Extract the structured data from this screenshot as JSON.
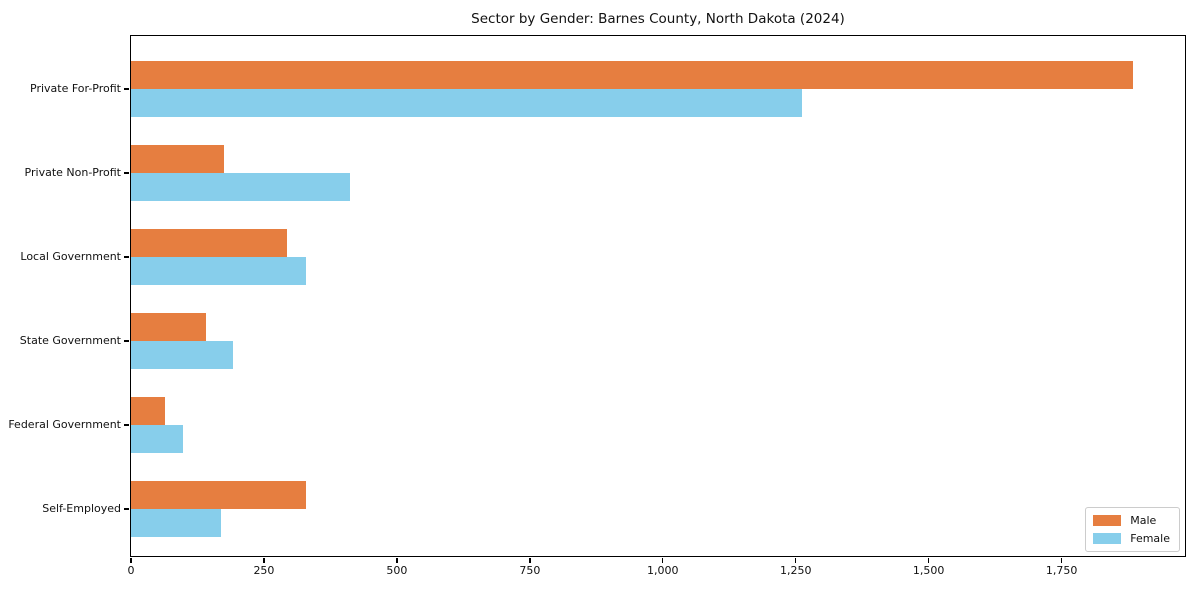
{
  "title": "Sector by Gender: Barnes County, North Dakota (2024)",
  "colors": {
    "male": "#E67E40",
    "female": "#87CEEB",
    "axis": "#000000",
    "legend_border": "#cccccc",
    "background": "#ffffff"
  },
  "legend": {
    "position": "lower right",
    "items": [
      {
        "label": "Male",
        "color": "#E67E40"
      },
      {
        "label": "Female",
        "color": "#87CEEB"
      }
    ]
  },
  "chart_data": {
    "type": "bar",
    "orientation": "horizontal",
    "title": "Sector by Gender: Barnes County, North Dakota (2024)",
    "xlabel": "",
    "ylabel": "",
    "grid": false,
    "legend_position": "lower right",
    "categories": [
      "Private For-Profit",
      "Private Non-Profit",
      "Local Government",
      "State Government",
      "Federal Government",
      "Self-Employed"
    ],
    "series": [
      {
        "name": "Male",
        "color": "#E67E40",
        "values": [
          1884,
          174,
          294,
          141,
          64,
          330
        ]
      },
      {
        "name": "Female",
        "color": "#87CEEB",
        "values": [
          1262,
          412,
          330,
          191,
          98,
          169
        ]
      }
    ],
    "xlim": [
      0,
      1982
    ],
    "xticks": [
      0,
      250,
      500,
      750,
      1000,
      1250,
      1500,
      1750
    ],
    "xtick_labels": [
      "0",
      "250",
      "500",
      "750",
      "1,000",
      "1,250",
      "1,500",
      "1,750"
    ]
  }
}
